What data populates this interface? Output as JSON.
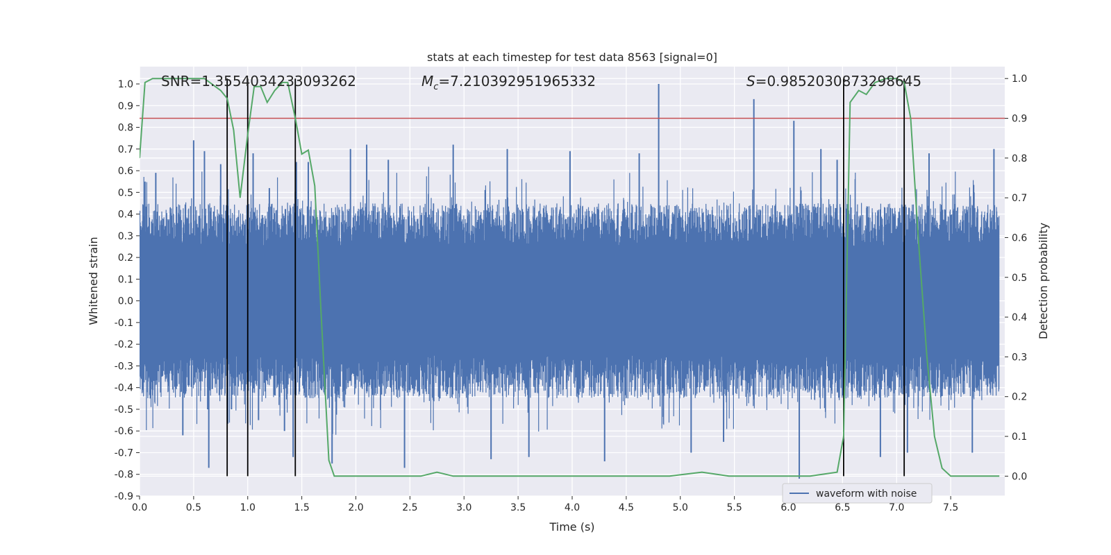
{
  "chart_data": {
    "type": "line",
    "title": "stats at each timestep for test data 8563 [signal=0]",
    "xlabel": "Time (s)",
    "ylabel_left": "Whitened strain",
    "ylabel_right": "Detection probability",
    "xlim": [
      0.0,
      8.0
    ],
    "ylim_left": [
      -0.9,
      1.08
    ],
    "ylim_right": [
      -0.05,
      1.03
    ],
    "x_ticks": [
      "0.0",
      "0.5",
      "1.0",
      "1.5",
      "2.0",
      "2.5",
      "3.0",
      "3.5",
      "4.0",
      "4.5",
      "5.0",
      "5.5",
      "6.0",
      "6.5",
      "7.0",
      "7.5"
    ],
    "y_left_ticks": [
      "1.0",
      "0.9",
      "0.8",
      "0.7",
      "0.6",
      "0.5",
      "0.4",
      "0.3",
      "0.2",
      "0.1",
      "0.0",
      "-0.1",
      "-0.2",
      "-0.3",
      "-0.4",
      "-0.5",
      "-0.6",
      "-0.7",
      "-0.8",
      "-0.9"
    ],
    "y_right_ticks": [
      "1.0",
      "0.9",
      "0.8",
      "0.7",
      "0.6",
      "0.5",
      "0.4",
      "0.3",
      "0.2",
      "0.1",
      "0.0"
    ],
    "grid": true,
    "legend_position": "bottom-right",
    "annotations": {
      "snr": "SNR=1.3554034233093262",
      "mc_symbol": "M",
      "mc_sub": "c",
      "mc_value": "=7.210392951965332",
      "s_symbol": "S",
      "s_value": "=0.9852030873298645"
    },
    "threshold": {
      "value": 0.9,
      "axis": "right",
      "color": "#c44e52"
    },
    "vertical_lines_x": [
      0.81,
      1.0,
      1.44,
      6.51,
      7.07
    ],
    "series": [
      {
        "name": "waveform with noise",
        "axis": "left",
        "color": "#4c72b0",
        "envelope_typical": 0.45,
        "spikes": [
          {
            "x": 0.05,
            "y": 0.55
          },
          {
            "x": 0.1,
            "y": -0.45
          },
          {
            "x": 0.15,
            "y": 0.59
          },
          {
            "x": 0.5,
            "y": 0.74
          },
          {
            "x": 0.6,
            "y": 0.69
          },
          {
            "x": 0.63,
            "y": -0.5
          },
          {
            "x": 0.64,
            "y": -0.77
          },
          {
            "x": 0.4,
            "y": -0.62
          },
          {
            "x": 0.75,
            "y": 0.63
          },
          {
            "x": 0.85,
            "y": -0.5
          },
          {
            "x": 1.05,
            "y": 0.68
          },
          {
            "x": 1.1,
            "y": -0.55
          },
          {
            "x": 1.2,
            "y": 0.52
          },
          {
            "x": 1.34,
            "y": -0.6
          },
          {
            "x": 1.42,
            "y": -0.72
          },
          {
            "x": 1.45,
            "y": 0.64
          },
          {
            "x": 1.56,
            "y": 0.64
          },
          {
            "x": 1.78,
            "y": -0.75
          },
          {
            "x": 1.95,
            "y": 0.7
          },
          {
            "x": 2.1,
            "y": 0.72
          },
          {
            "x": 2.3,
            "y": 0.65
          },
          {
            "x": 2.45,
            "y": -0.77
          },
          {
            "x": 2.9,
            "y": 0.72
          },
          {
            "x": 3.25,
            "y": -0.73
          },
          {
            "x": 3.4,
            "y": 0.7
          },
          {
            "x": 3.6,
            "y": -0.72
          },
          {
            "x": 3.98,
            "y": 0.69
          },
          {
            "x": 4.3,
            "y": -0.74
          },
          {
            "x": 4.8,
            "y": 1.0
          },
          {
            "x": 4.62,
            "y": 0.68
          },
          {
            "x": 5.1,
            "y": -0.7
          },
          {
            "x": 5.4,
            "y": -0.65
          },
          {
            "x": 5.68,
            "y": 0.93
          },
          {
            "x": 6.05,
            "y": 0.83
          },
          {
            "x": 6.1,
            "y": -0.82
          },
          {
            "x": 6.3,
            "y": 0.7
          },
          {
            "x": 6.45,
            "y": 0.65
          },
          {
            "x": 6.85,
            "y": -0.72
          },
          {
            "x": 7.1,
            "y": -0.7
          },
          {
            "x": 7.3,
            "y": 0.68
          },
          {
            "x": 7.7,
            "y": -0.7
          },
          {
            "x": 7.9,
            "y": 0.7
          }
        ]
      },
      {
        "name": "detection probability",
        "axis": "right",
        "color": "#55a868",
        "x": [
          0.0,
          0.05,
          0.12,
          0.2,
          0.3,
          0.4,
          0.5,
          0.6,
          0.7,
          0.75,
          0.81,
          0.87,
          0.93,
          1.0,
          1.06,
          1.12,
          1.18,
          1.25,
          1.32,
          1.37,
          1.44,
          1.5,
          1.56,
          1.62,
          1.68,
          1.75,
          1.8,
          1.9,
          2.0,
          2.2,
          2.4,
          2.6,
          2.75,
          2.9,
          3.2,
          3.5,
          3.8,
          4.1,
          4.4,
          4.6,
          4.9,
          5.2,
          5.45,
          5.6,
          5.8,
          6.0,
          6.2,
          6.45,
          6.51,
          6.57,
          6.65,
          6.72,
          6.8,
          6.9,
          7.0,
          7.07,
          7.13,
          7.2,
          7.28,
          7.35,
          7.42,
          7.5,
          7.7,
          7.95
        ],
        "y": [
          0.8,
          0.99,
          1.0,
          1.0,
          1.0,
          1.0,
          1.0,
          1.0,
          0.98,
          0.97,
          0.95,
          0.87,
          0.7,
          0.86,
          0.98,
          0.98,
          0.94,
          0.97,
          0.99,
          0.99,
          0.9,
          0.81,
          0.82,
          0.73,
          0.4,
          0.04,
          0.0,
          0.0,
          0.0,
          0.0,
          0.0,
          0.0,
          0.01,
          0.0,
          0.0,
          0.0,
          0.0,
          0.0,
          0.0,
          0.0,
          0.0,
          0.01,
          0.0,
          0.0,
          0.0,
          0.0,
          0.0,
          0.01,
          0.1,
          0.94,
          0.97,
          0.96,
          0.99,
          1.0,
          1.0,
          0.99,
          0.9,
          0.6,
          0.3,
          0.1,
          0.02,
          0.0,
          0.0,
          0.0
        ]
      }
    ]
  }
}
